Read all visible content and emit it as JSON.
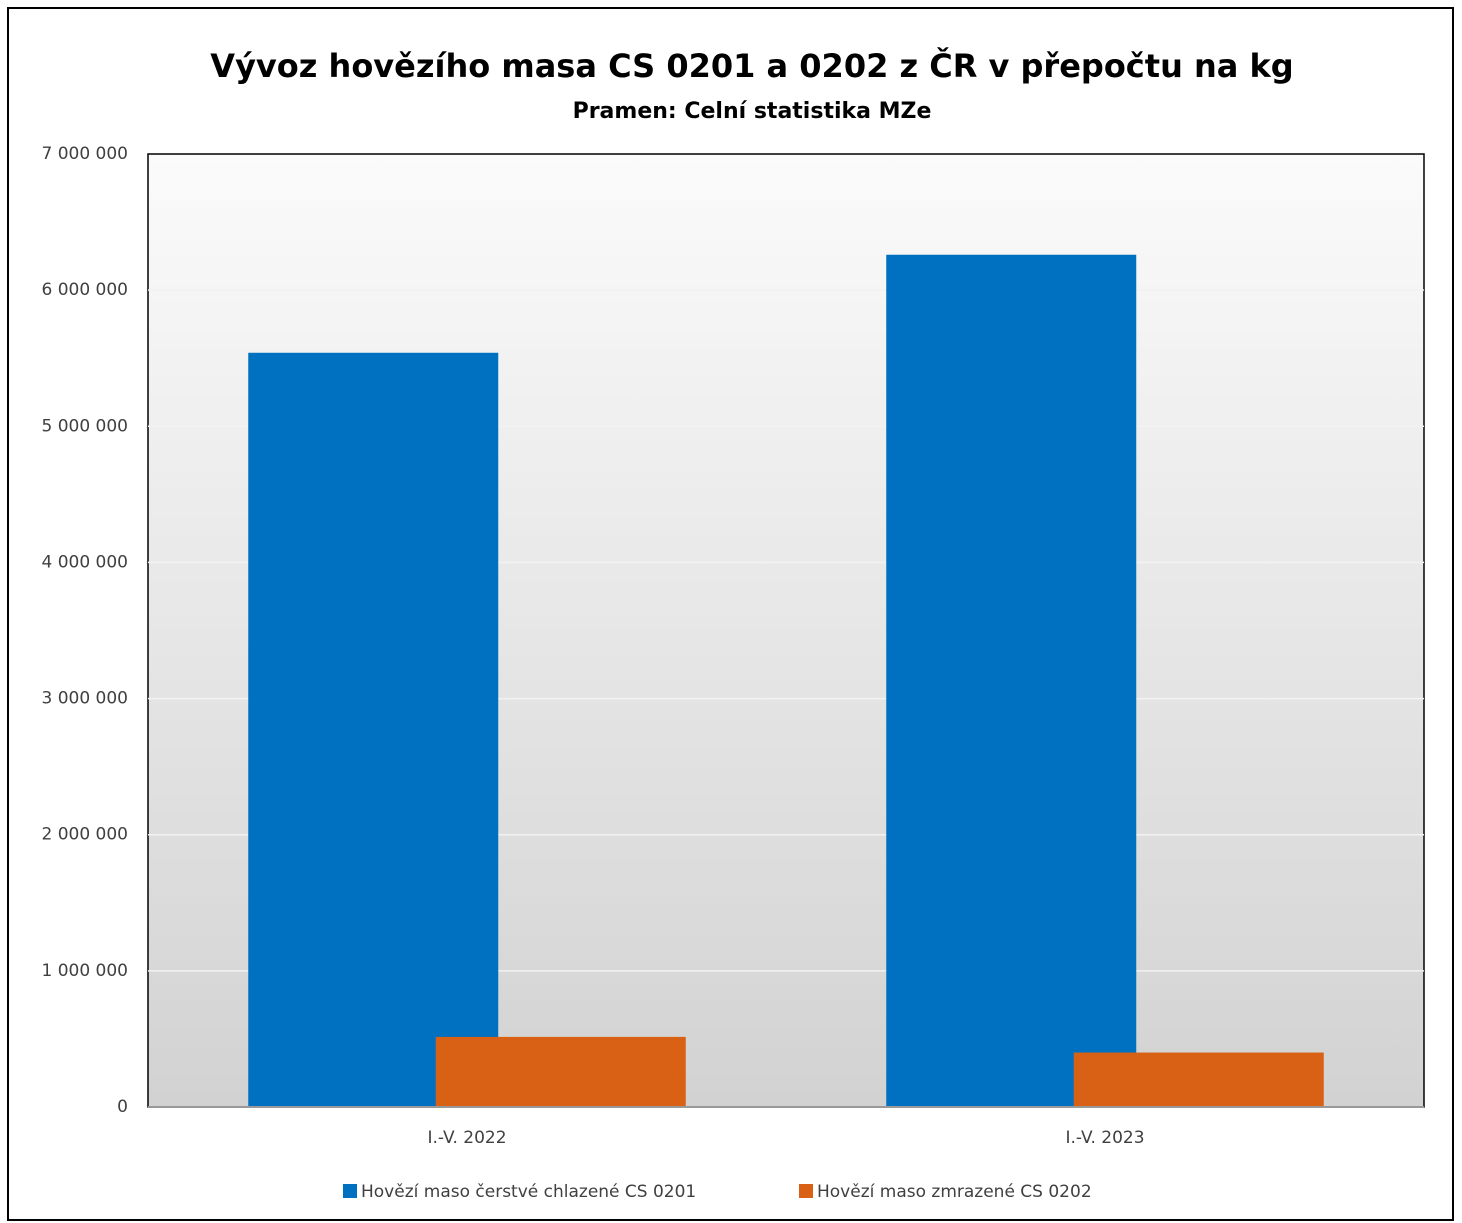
{
  "chart_data": {
    "type": "bar",
    "title": "Vývoz hovězího masa CS 0201 a 0202 z ČR v přepočtu na kg",
    "subtitle": "Pramen: Celní statistika MZe",
    "categories": [
      "I.-V. 2022",
      "I.-V. 2023"
    ],
    "series": [
      {
        "name": "Hovězí maso čerstvé chlazené CS 0201",
        "color": "#0070c0",
        "values": [
          5540000,
          6260000
        ]
      },
      {
        "name": "Hovězí maso zmrazené CS 0202",
        "color": "#d86116",
        "values": [
          515000,
          400000
        ]
      }
    ],
    "ylim": [
      0,
      7000000
    ],
    "yticks": [
      0,
      {
        "value": 1000000,
        "label": "1 000 000"
      },
      {
        "value": 2000000,
        "label": "2 000 000"
      },
      {
        "value": 3000000,
        "label": "3 000 000"
      },
      {
        "value": 4000000,
        "label": "4 000 000"
      },
      {
        "value": 5000000,
        "label": "5 000 000"
      },
      {
        "value": 6000000,
        "label": "6 000 000"
      },
      {
        "value": 7000000,
        "label": "7 000 000"
      }
    ],
    "grid": true,
    "legend": "bottom"
  }
}
